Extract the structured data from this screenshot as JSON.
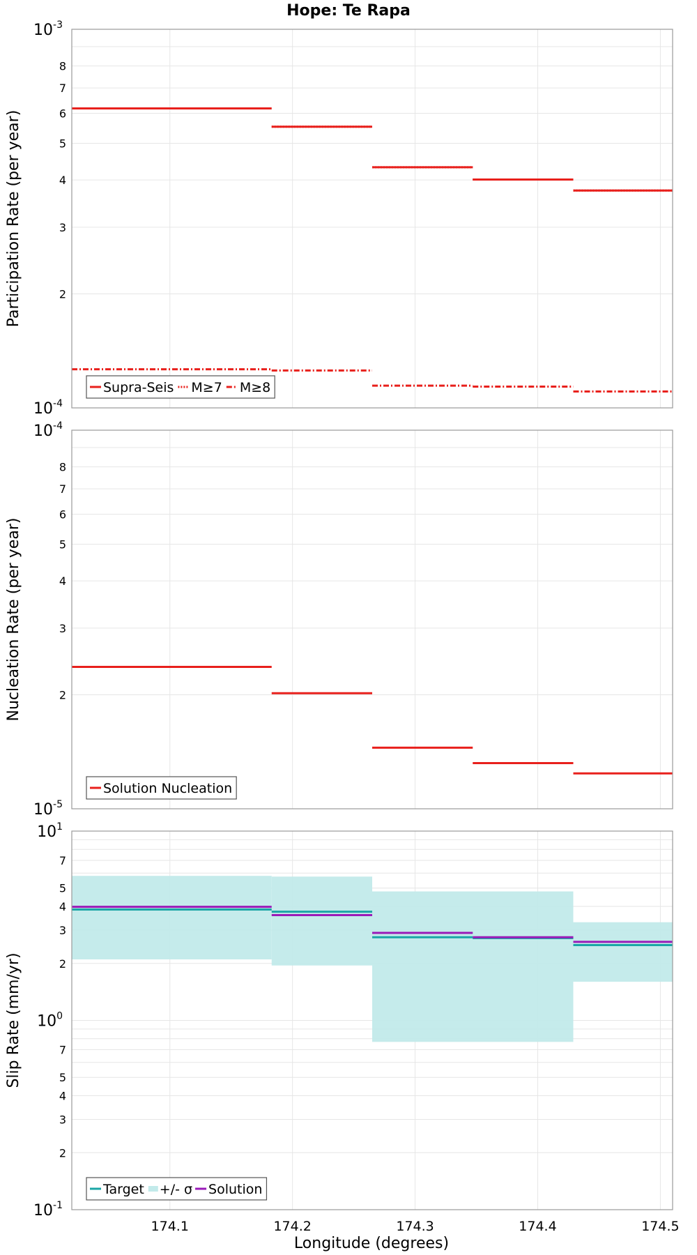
{
  "chart_data": {
    "title": "Hope: Te Rapa",
    "xlabel": "Longitude (degrees)",
    "xlim": [
      174.02,
      174.51
    ],
    "x_ticks": [
      "174.1",
      "174.2",
      "174.3",
      "174.4",
      "174.5"
    ],
    "colors": {
      "red": "#e8201c",
      "teal": "#1aa6a6",
      "purple": "#9a1ab8",
      "band": "#c2eaea"
    },
    "panels": [
      {
        "type": "line",
        "ylabel": "Participation Rate (per year)",
        "yscale": "log",
        "ylim": [
          0.0001,
          0.001
        ],
        "y_major_labels": [
          {
            "base": "10",
            "exp": "-4"
          },
          {
            "base": "10",
            "exp": "-3"
          }
        ],
        "y_minor_labels": [
          "2",
          "3",
          "4",
          "5",
          "6",
          "7",
          "8"
        ],
        "legend": {
          "location": "lower-left"
        },
        "series": [
          {
            "name": "Supra-Seis",
            "style": "solid",
            "segments": [
              {
                "x": [
                  174.02,
                  174.183
                ],
                "y": 0.000618
              },
              {
                "x": [
                  174.183,
                  174.265
                ],
                "y": 0.000553
              },
              {
                "x": [
                  174.265,
                  174.347
                ],
                "y": 0.000432
              },
              {
                "x": [
                  174.347,
                  174.429
                ],
                "y": 0.000401
              },
              {
                "x": [
                  174.429,
                  174.51
                ],
                "y": 0.000375
              }
            ]
          },
          {
            "name": "M≥7",
            "style": "dotted",
            "segments": [
              {
                "x": [
                  174.02,
                  174.183
                ],
                "y": 0.000618
              },
              {
                "x": [
                  174.183,
                  174.265
                ],
                "y": 0.000553
              },
              {
                "x": [
                  174.265,
                  174.347
                ],
                "y": 0.000432
              },
              {
                "x": [
                  174.347,
                  174.429
                ],
                "y": 0.000401
              },
              {
                "x": [
                  174.429,
                  174.51
                ],
                "y": 0.000375
              }
            ]
          },
          {
            "name": "M≥8",
            "style": "dashdot",
            "segments": [
              {
                "x": [
                  174.02,
                  174.183
                ],
                "y": 0.0001265
              },
              {
                "x": [
                  174.183,
                  174.265
                ],
                "y": 0.0001255
              },
              {
                "x": [
                  174.265,
                  174.347
                ],
                "y": 0.0001145
              },
              {
                "x": [
                  174.347,
                  174.429
                ],
                "y": 0.0001138
              },
              {
                "x": [
                  174.429,
                  174.51
                ],
                "y": 0.0001105
              }
            ]
          }
        ]
      },
      {
        "type": "line",
        "ylabel": "Nucleation Rate (per year)",
        "yscale": "log",
        "ylim": [
          1e-05,
          0.0001
        ],
        "y_major_labels": [
          {
            "base": "10",
            "exp": "-5"
          },
          {
            "base": "10",
            "exp": "-4"
          }
        ],
        "y_minor_labels": [
          "2",
          "3",
          "4",
          "5",
          "6",
          "7",
          "8"
        ],
        "legend": {
          "location": "lower-left"
        },
        "series": [
          {
            "name": "Solution Nucleation",
            "style": "solid",
            "segments": [
              {
                "x": [
                  174.02,
                  174.183
                ],
                "y": 2.37e-05
              },
              {
                "x": [
                  174.183,
                  174.265
                ],
                "y": 2.02e-05
              },
              {
                "x": [
                  174.265,
                  174.347
                ],
                "y": 1.45e-05
              },
              {
                "x": [
                  174.347,
                  174.429
                ],
                "y": 1.32e-05
              },
              {
                "x": [
                  174.429,
                  174.51
                ],
                "y": 1.24e-05
              }
            ]
          }
        ]
      },
      {
        "type": "line",
        "ylabel": "Slip Rate (mm/yr)",
        "yscale": "log",
        "ylim": [
          0.1,
          10
        ],
        "y_major_labels": [
          {
            "base": "10",
            "exp": "-1"
          },
          {
            "base": "10",
            "exp": "0"
          },
          {
            "base": "10",
            "exp": "1"
          }
        ],
        "y_minor_labels": [
          "2",
          "3",
          "4",
          "5",
          "7",
          "2",
          "3",
          "4",
          "5",
          "7"
        ],
        "legend": {
          "location": "lower-left"
        },
        "band": {
          "name": "+/- σ",
          "segments": [
            {
              "x": [
                174.02,
                174.183
              ],
              "low": 2.1,
              "high": 5.8
            },
            {
              "x": [
                174.183,
                174.265
              ],
              "low": 1.95,
              "high": 5.75
            },
            {
              "x": [
                174.265,
                174.429
              ],
              "low": 0.77,
              "high": 4.8
            },
            {
              "x": [
                174.429,
                174.51
              ],
              "low": 1.6,
              "high": 3.3
            }
          ]
        },
        "series": [
          {
            "name": "Target",
            "style": "solid",
            "segments": [
              {
                "x": [
                  174.02,
                  174.183
                ],
                "y": 3.85
              },
              {
                "x": [
                  174.183,
                  174.265
                ],
                "y": 3.75
              },
              {
                "x": [
                  174.265,
                  174.347
                ],
                "y": 2.75
              },
              {
                "x": [
                  174.347,
                  174.429
                ],
                "y": 2.72
              },
              {
                "x": [
                  174.429,
                  174.51
                ],
                "y": 2.5
              }
            ]
          },
          {
            "name": "Solution",
            "style": "solid",
            "segments": [
              {
                "x": [
                  174.02,
                  174.183
                ],
                "y": 3.98
              },
              {
                "x": [
                  174.183,
                  174.265
                ],
                "y": 3.6
              },
              {
                "x": [
                  174.265,
                  174.347
                ],
                "y": 2.9
              },
              {
                "x": [
                  174.347,
                  174.429
                ],
                "y": 2.75
              },
              {
                "x": [
                  174.429,
                  174.51
                ],
                "y": 2.6
              }
            ]
          }
        ]
      }
    ]
  }
}
